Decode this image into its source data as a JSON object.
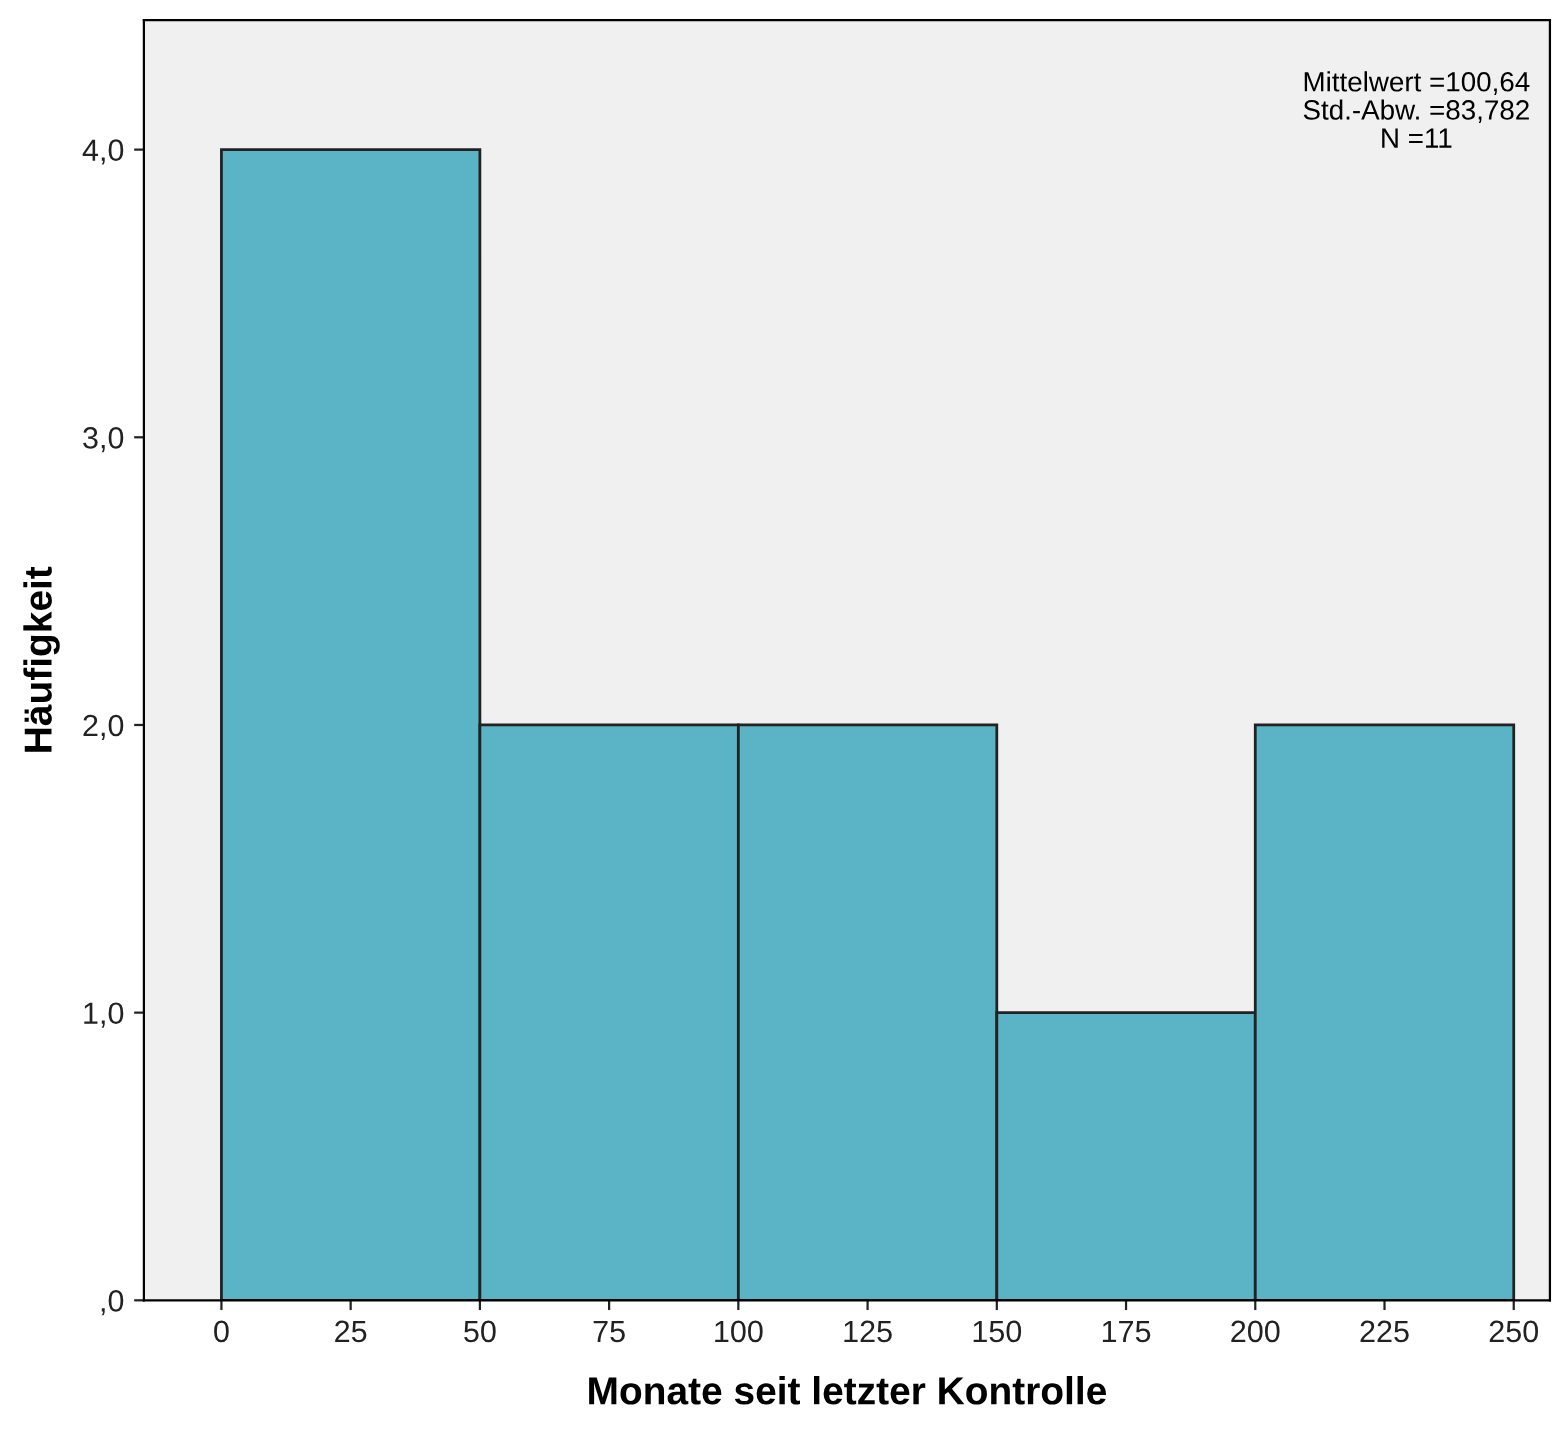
{
  "chart_data": {
    "type": "histogram",
    "xlabel": "Monate seit letzter Kontrolle",
    "ylabel": "Häufigkeit",
    "bins": [
      0,
      50,
      100,
      150,
      200,
      250
    ],
    "values": [
      4,
      2,
      2,
      1,
      2
    ],
    "color": "#5ab4c6",
    "xlim": [
      -15,
      257
    ],
    "ylim": [
      0,
      4.45
    ],
    "xticks": [
      0,
      25,
      50,
      75,
      100,
      125,
      150,
      175,
      200,
      225,
      250
    ],
    "yticks": [
      {
        "value": 0,
        "label": ",0"
      },
      {
        "value": 1,
        "label": "1,0"
      },
      {
        "value": 2,
        "label": "2,0"
      },
      {
        "value": 3,
        "label": "3,0"
      },
      {
        "value": 4,
        "label": "4,0"
      }
    ],
    "annotations": [
      "Mittelwert =100,64",
      "Std.-Abw. =83,782",
      "N =11"
    ],
    "grid": false,
    "legend": false
  }
}
